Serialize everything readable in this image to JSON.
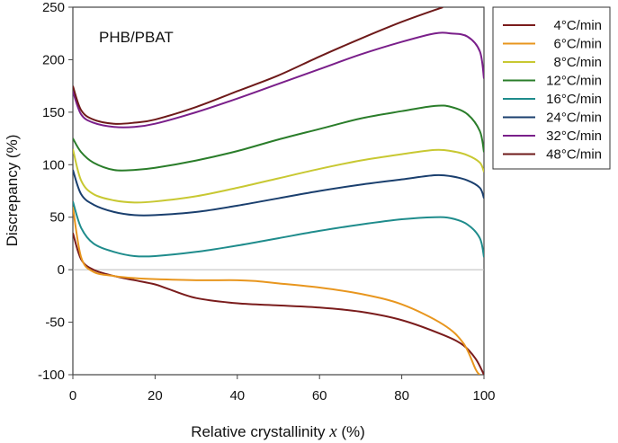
{
  "chart_data": {
    "type": "line",
    "annotation": "PHB/PBAT",
    "xlabel": "Relative crystallinity x (%)",
    "xlabel_parts": {
      "pre": "Relative crystallinity ",
      "var": "x",
      "post": " (%)"
    },
    "ylabel": "Discrepancy (%)",
    "xlim": [
      0,
      100
    ],
    "ylim": [
      -100,
      250
    ],
    "xticks": [
      0,
      20,
      40,
      60,
      80,
      100
    ],
    "yticks": [
      -100,
      -50,
      0,
      50,
      100,
      150,
      200,
      250
    ],
    "grid": false,
    "zero_line": true,
    "legend_placement": "right",
    "series": [
      {
        "name": "4°C/min",
        "color": "#7a1c1c",
        "x": [
          0,
          2,
          5,
          10,
          15,
          20,
          23,
          30,
          40,
          50,
          60,
          70,
          80,
          90,
          95,
          98,
          100
        ],
        "y": [
          35,
          10,
          0,
          -6,
          -10,
          -14,
          -18,
          -27,
          -32,
          -34,
          -36,
          -40,
          -48,
          -62,
          -72,
          -85,
          -100
        ]
      },
      {
        "name": "6°C/min",
        "color": "#e8961e",
        "x": [
          0,
          2,
          5,
          10,
          15,
          20,
          30,
          40,
          45,
          50,
          60,
          70,
          80,
          90,
          95,
          98,
          99
        ],
        "y": [
          60,
          12,
          -2,
          -6,
          -8,
          -9,
          -10,
          -10,
          -11,
          -13,
          -17,
          -23,
          -33,
          -52,
          -70,
          -95,
          -100
        ]
      },
      {
        "name": "8°C/min",
        "color": "#c8c832",
        "x": [
          0,
          2,
          5,
          10,
          15,
          20,
          30,
          40,
          50,
          60,
          70,
          80,
          88,
          92,
          96,
          99,
          100
        ],
        "y": [
          115,
          85,
          72,
          66,
          64,
          65,
          70,
          78,
          87,
          96,
          104,
          110,
          114,
          113,
          109,
          102,
          93
        ]
      },
      {
        "name": "12°C/min",
        "color": "#2a7d2a",
        "x": [
          0,
          2,
          5,
          10,
          15,
          20,
          30,
          40,
          50,
          60,
          70,
          80,
          88,
          92,
          96,
          99,
          100
        ],
        "y": [
          125,
          112,
          102,
          95,
          95,
          97,
          104,
          113,
          124,
          134,
          144,
          151,
          156,
          155,
          148,
          132,
          112
        ]
      },
      {
        "name": "16°C/min",
        "color": "#1f8c8c",
        "x": [
          0,
          2,
          5,
          10,
          15,
          20,
          30,
          40,
          50,
          60,
          70,
          80,
          88,
          92,
          96,
          99,
          100
        ],
        "y": [
          65,
          40,
          25,
          17,
          13,
          13,
          17,
          23,
          30,
          37,
          43,
          48,
          50,
          49,
          43,
          30,
          12
        ]
      },
      {
        "name": "24°C/min",
        "color": "#1a3f6e",
        "x": [
          0,
          2,
          5,
          10,
          15,
          20,
          30,
          40,
          50,
          60,
          70,
          80,
          88,
          92,
          96,
          99,
          100
        ],
        "y": [
          95,
          72,
          62,
          55,
          52,
          52,
          55,
          61,
          68,
          75,
          81,
          86,
          90,
          89,
          85,
          78,
          68
        ]
      },
      {
        "name": "32°C/min",
        "color": "#7a1f8a",
        "x": [
          0,
          2,
          5,
          10,
          15,
          20,
          30,
          40,
          50,
          60,
          70,
          80,
          88,
          92,
          96,
          99,
          100
        ],
        "y": [
          170,
          148,
          140,
          136,
          136,
          139,
          150,
          163,
          177,
          191,
          205,
          217,
          225,
          225,
          222,
          208,
          182
        ]
      },
      {
        "name": "48°C/min",
        "color": "#6e1a1a",
        "x": [
          0,
          2,
          5,
          10,
          15,
          20,
          30,
          40,
          50,
          60,
          70,
          80,
          90
        ],
        "y": [
          175,
          152,
          143,
          139,
          140,
          143,
          155,
          170,
          185,
          203,
          220,
          236,
          250
        ]
      }
    ]
  }
}
